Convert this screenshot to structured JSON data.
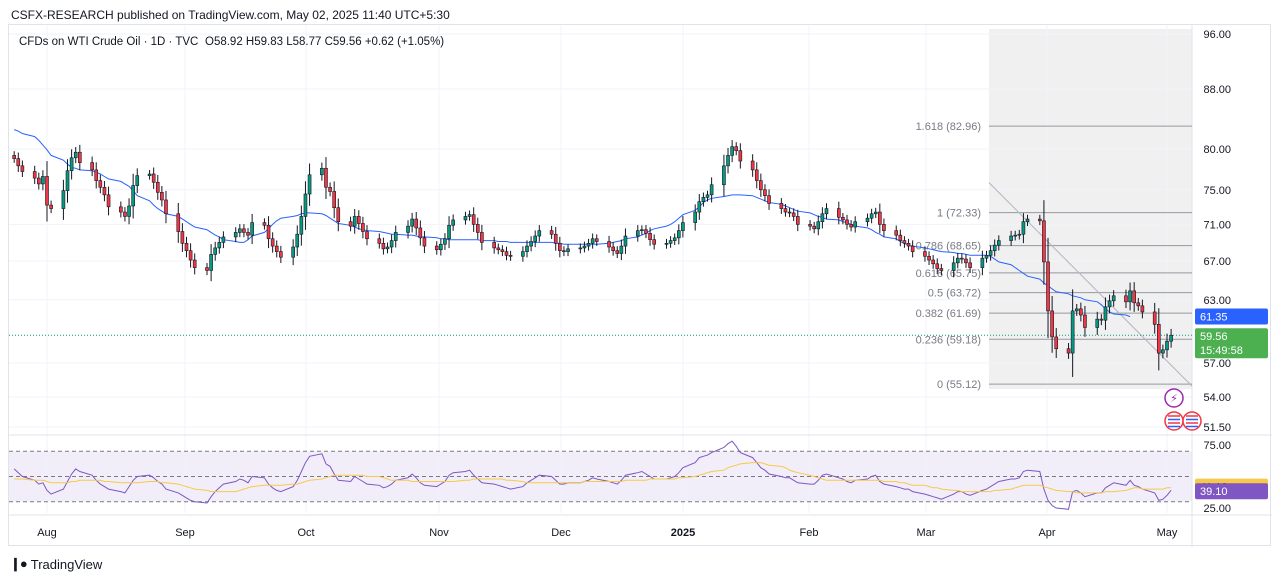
{
  "header": {
    "published": "CSFX-RESEARCH published on TradingView.com, May 02, 2025 11:40 UTC+5:30"
  },
  "footer": {
    "brand": "TradingView"
  },
  "colors": {
    "up": "#089981",
    "down": "#f23645",
    "ma": "#2962ff",
    "rsi": "#7e57c2",
    "rsi_ma": "#f7c948",
    "price_badge": "#4caf50",
    "fib_line": "#9598a1"
  },
  "chart_data": [
    {
      "type": "candlestick",
      "title": "CFDs on WTI Crude Oil · 1D · TVC",
      "ohlc_label": "O58.92 H59.83 L58.77 C59.56 +0.62 (+1.05%)",
      "y_axis_ticks": [
        "96.00",
        "88.00",
        "80.00",
        "75.00",
        "71.00",
        "67.00",
        "63.00",
        "57.00",
        "54.00",
        "51.50"
      ],
      "y_axis_values": [
        96,
        88,
        80,
        75,
        71,
        67,
        63,
        57,
        54,
        51.5
      ],
      "y_scale": "log",
      "x_axis_ticks": [
        "Aug",
        "Sep",
        "Oct",
        "Nov",
        "Dec",
        "2025",
        "Feb",
        "Mar",
        "Apr",
        "May"
      ],
      "x_tick_dates": [
        "2024-08-01",
        "2024-09-01",
        "2024-10-01",
        "2024-11-01",
        "2024-12-01",
        "2025-01-01",
        "2025-02-01",
        "2025-03-01",
        "2025-04-01",
        "2025-05-01"
      ],
      "last_price": "59.56",
      "countdown": "15:49:58",
      "ma_last": "61.35",
      "fibonacci": [
        {
          "label": "1.618 (82.96)",
          "value": 82.96
        },
        {
          "label": "1 (72.33)",
          "value": 72.33
        },
        {
          "label": "0.786 (68.65)",
          "value": 68.65
        },
        {
          "label": "0.618 (65.75)",
          "value": 65.75
        },
        {
          "label": "0.5 (63.72)",
          "value": 63.72
        },
        {
          "label": "0.382 (61.69)",
          "value": 61.69
        },
        {
          "label": "0.236 (59.18)",
          "value": 59.18
        },
        {
          "label": "0 (55.12)",
          "value": 55.12
        }
      ],
      "closes": [
        78.8,
        77.9,
        77.2,
        76.4,
        75.7,
        76.6,
        73.2,
        72.8,
        74.9,
        77.3,
        78.9,
        79.6,
        78.3,
        77.4,
        76.1,
        75.3,
        74.4,
        73.0,
        72.4,
        71.9,
        73.1,
        75.5,
        76.7,
        76.9,
        75.9,
        74.7,
        73.8,
        72.2,
        70.2,
        68.9,
        68.1,
        67.1,
        66.3,
        66.0,
        67.7,
        68.4,
        69.0,
        69.6,
        70.1,
        70.5,
        70.1,
        69.8,
        71.2,
        70.9,
        69.4,
        68.6,
        68.0,
        67.4,
        68.5,
        69.9,
        71.9,
        74.5,
        76.8,
        77.6,
        75.3,
        74.8,
        72.9,
        71.3,
        70.8,
        71.9,
        71.1,
        70.2,
        69.4,
        68.9,
        68.3,
        68.5,
        69.2,
        70.1,
        70.8,
        71.6,
        70.6,
        69.5,
        68.6,
        68.2,
        68.8,
        69.4,
        70.9,
        71.5,
        71.9,
        72.1,
        71.0,
        70.1,
        69.0,
        68.4,
        68.2,
        68.0,
        67.6,
        67.5,
        68.0,
        68.6,
        69.1,
        69.7,
        70.3,
        69.9,
        68.9,
        68.1,
        68.0,
        68.3,
        68.4,
        68.6,
        68.9,
        69.4,
        69.1,
        68.5,
        68.1,
        67.8,
        68.6,
        69.7,
        70.3,
        70.4,
        70.0,
        69.3,
        68.8,
        68.9,
        69.2,
        69.5,
        70.3,
        71.2,
        72.4,
        73.6,
        74.1,
        74.4,
        75.6,
        77.9,
        79.2,
        80.3,
        79.8,
        78.5,
        77.4,
        76.1,
        75.0,
        74.3,
        73.4,
        72.8,
        72.4,
        72.3,
        71.9,
        71.0,
        70.8,
        70.5,
        71.3,
        72.2,
        72.8,
        71.8,
        71.5,
        71.0,
        70.7,
        71.3,
        71.7,
        72.2,
        72.4,
        71.0,
        70.3,
        69.8,
        69.2,
        68.9,
        68.6,
        68.0,
        67.5,
        67.1,
        66.7,
        66.2,
        66.0,
        66.8,
        67.3,
        67.2,
        66.8,
        66.3,
        67.3,
        67.6,
        68.1,
        68.7,
        69.2,
        69.7,
        69.8,
        69.9,
        71.3,
        71.6,
        71.4,
        66.9,
        61.9,
        59.4,
        58.3,
        57.9,
        61.9,
        62.1,
        61.5,
        60.3,
        61.1,
        61.0,
        62.3,
        62.9,
        63.4,
        62.8,
        63.9,
        62.7,
        62.4,
        61.8,
        60.6,
        57.9,
        58.2,
        59.0,
        59.56
      ],
      "ma20": [
        82.5,
        82.3,
        82.0,
        81.6,
        81.1,
        80.5,
        79.9,
        79.2,
        78.6,
        78.1,
        77.7,
        77.6,
        77.4,
        77.3,
        77.1,
        76.9,
        76.6,
        76.3,
        76.0,
        75.7,
        75.4,
        74.9,
        74.3,
        73.7,
        73.2,
        72.8,
        72.5,
        72.2,
        71.9,
        71.6,
        71.3,
        71.0,
        70.7,
        70.4,
        70.1,
        69.8,
        69.6,
        69.3,
        69.1,
        69.0,
        69.0,
        69.3,
        69.7,
        70.1,
        70.5,
        71.0,
        71.4,
        71.7,
        71.9,
        72.0,
        72.2,
        72.3,
        72.3,
        72.2,
        72.0,
        71.7,
        71.4,
        71.1,
        70.9,
        70.7,
        70.5,
        70.4,
        70.3,
        70.2,
        70.1,
        70.0,
        69.9,
        69.9,
        69.8,
        69.8,
        69.7,
        69.6,
        69.6,
        69.5,
        69.4,
        69.4,
        69.3,
        69.3,
        69.3,
        69.3,
        69.3,
        69.3,
        69.2,
        69.2,
        69.1,
        69.1,
        69.1,
        69.0,
        69.0,
        69.0,
        69.0,
        69.0,
        69.0,
        69.0,
        68.9,
        68.9,
        68.8,
        68.8,
        68.8,
        68.8,
        68.8,
        68.8,
        68.8,
        68.9,
        69.0,
        69.1,
        69.2,
        69.4,
        69.6,
        69.8,
        70.0,
        70.3,
        70.5,
        70.8,
        71.0,
        71.3,
        71.7,
        72.1,
        72.6,
        73.0,
        73.5,
        73.8,
        74.0,
        74.2,
        74.3,
        74.4,
        74.4,
        74.4,
        74.3,
        74.1,
        73.9,
        73.7,
        73.5,
        73.3,
        73.1,
        72.9,
        72.7,
        72.5,
        72.3,
        72.1,
        71.9,
        71.8,
        71.6,
        71.5,
        71.3,
        71.2,
        71.0,
        70.8,
        70.6,
        70.4,
        70.1,
        69.9,
        69.6,
        69.4,
        69.1,
        68.9,
        68.7,
        68.6,
        68.4,
        68.3,
        68.2,
        68.1,
        68.0,
        67.9,
        67.8,
        67.8,
        67.7,
        67.6,
        67.6,
        67.6,
        67.5,
        67.2,
        66.9,
        66.6,
        66.3,
        66.0,
        65.7,
        65.4,
        65.1,
        64.7,
        64.4,
        64.1,
        63.8,
        63.6,
        63.4,
        63.3,
        63.2,
        63.0,
        62.8,
        62.5,
        62.1,
        61.8,
        61.6,
        61.5,
        61.35
      ]
    },
    {
      "type": "line",
      "title": "RSI",
      "y_axis_ticks": [
        "75.00",
        "25.00"
      ],
      "y_axis_values": [
        75,
        25
      ],
      "levels": [
        70,
        50,
        30
      ],
      "rsi_last": "39.10",
      "rsi_ma_last": "41.13",
      "rsi": [
        56,
        53,
        50,
        47,
        44,
        45,
        39,
        36,
        40,
        46,
        52,
        56,
        54,
        51,
        47,
        44,
        42,
        40,
        38,
        37,
        42,
        47,
        50,
        51,
        49,
        46,
        44,
        40,
        37,
        35,
        33,
        31,
        30,
        29,
        34,
        38,
        41,
        44,
        46,
        48,
        47,
        45,
        50,
        49,
        44,
        41,
        39,
        38,
        42,
        47,
        54,
        61,
        66,
        68,
        60,
        58,
        52,
        47,
        46,
        50,
        48,
        46,
        44,
        43,
        41,
        42,
        44,
        47,
        49,
        52,
        49,
        45,
        43,
        42,
        44,
        46,
        51,
        53,
        54,
        55,
        51,
        48,
        45,
        44,
        43,
        42,
        41,
        40,
        42,
        45,
        47,
        49,
        51,
        50,
        47,
        44,
        44,
        45,
        45,
        46,
        47,
        49,
        48,
        46,
        45,
        44,
        47,
        51,
        53,
        54,
        52,
        50,
        48,
        48,
        49,
        50,
        53,
        57,
        61,
        65,
        66,
        67,
        69,
        73,
        76,
        78,
        74,
        69,
        65,
        61,
        57,
        55,
        52,
        50,
        49,
        49,
        47,
        45,
        44,
        44,
        47,
        51,
        52,
        49,
        48,
        46,
        45,
        47,
        48,
        50,
        51,
        46,
        44,
        42,
        41,
        40,
        40,
        38,
        36,
        35,
        34,
        33,
        32,
        36,
        38,
        38,
        36,
        35,
        39,
        40,
        42,
        44,
        46,
        48,
        48,
        49,
        54,
        55,
        54,
        40,
        31,
        27,
        25,
        24,
        38,
        39,
        37,
        34,
        37,
        37,
        41,
        43,
        45,
        43,
        47,
        43,
        42,
        40,
        37,
        31,
        32,
        35,
        39.1
      ],
      "rsi_ma": [
        48,
        48,
        48,
        47,
        47,
        47,
        46,
        45,
        45,
        45,
        46,
        46,
        47,
        47,
        47,
        47,
        46,
        46,
        45,
        45,
        45,
        45,
        45,
        46,
        46,
        46,
        45,
        45,
        44,
        43,
        42,
        41,
        40,
        39,
        38,
        38,
        38,
        38,
        38,
        39,
        40,
        41,
        42,
        43,
        43,
        43,
        43,
        43,
        44,
        44,
        45,
        46,
        47,
        48,
        49,
        50,
        51,
        51,
        51,
        51,
        51,
        51,
        50,
        50,
        49,
        48,
        47,
        47,
        47,
        46,
        46,
        46,
        46,
        46,
        46,
        46,
        46,
        46,
        47,
        47,
        48,
        48,
        48,
        48,
        48,
        48,
        47,
        47,
        46,
        45,
        45,
        45,
        45,
        45,
        45,
        45,
        45,
        45,
        45,
        46,
        46,
        46,
        46,
        46,
        46,
        46,
        46,
        47,
        47,
        47,
        47,
        48,
        48,
        48,
        48,
        48,
        49,
        49,
        50,
        51,
        52,
        53,
        54,
        55,
        57,
        58,
        59,
        60,
        61,
        61,
        61,
        60,
        59,
        58,
        57,
        55,
        54,
        53,
        51,
        50,
        49,
        48,
        47,
        47,
        47,
        47,
        47,
        47,
        47,
        47,
        47,
        47,
        46,
        46,
        45,
        45,
        44,
        43,
        43,
        42,
        41,
        41,
        40,
        39,
        39,
        38,
        38,
        38,
        38,
        38,
        38,
        39,
        39,
        40,
        41,
        42,
        43,
        43,
        43,
        42,
        41,
        40,
        39,
        38,
        38,
        37,
        37,
        37,
        37,
        37,
        38,
        38,
        38,
        39,
        40,
        41,
        41,
        40,
        40,
        40,
        40,
        41,
        41.13
      ]
    }
  ]
}
